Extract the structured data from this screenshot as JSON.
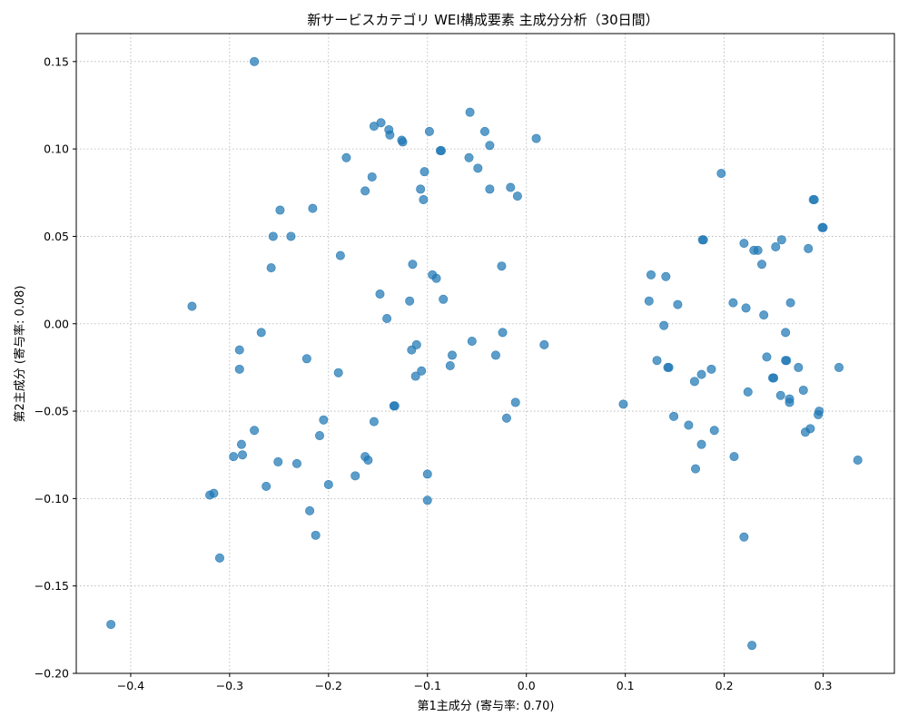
{
  "chart_data": {
    "type": "scatter",
    "title": "新サービスカテゴリ WEI構成要素 主成分分析（30日間）",
    "xlabel": "第1主成分 (寄与率: 0.70)",
    "ylabel": "第2主成分 (寄与率: 0.08)",
    "xlim": [
      -0.455,
      0.372
    ],
    "ylim": [
      -0.2,
      0.166
    ],
    "xticks": [
      -0.4,
      -0.3,
      -0.2,
      -0.1,
      0.0,
      0.1,
      0.2,
      0.3
    ],
    "xtick_labels": [
      "−0.4",
      "−0.3",
      "−0.2",
      "−0.1",
      "0.0",
      "0.1",
      "0.2",
      "0.3"
    ],
    "yticks": [
      -0.2,
      -0.15,
      -0.1,
      -0.05,
      0.0,
      0.05,
      0.1,
      0.15
    ],
    "ytick_labels": [
      "−0.20",
      "−0.15",
      "−0.10",
      "−0.05",
      "0.00",
      "0.05",
      "0.10",
      "0.15"
    ],
    "grid": true,
    "color": "#1f77b4",
    "points": [
      [
        -0.275,
        0.15
      ],
      [
        -0.42,
        -0.172
      ],
      [
        -0.338,
        0.01
      ],
      [
        -0.32,
        -0.098
      ],
      [
        -0.316,
        -0.097
      ],
      [
        -0.31,
        -0.134
      ],
      [
        -0.296,
        -0.076
      ],
      [
        -0.29,
        -0.015
      ],
      [
        -0.29,
        -0.026
      ],
      [
        -0.288,
        -0.069
      ],
      [
        -0.287,
        -0.075
      ],
      [
        -0.275,
        -0.061
      ],
      [
        -0.268,
        -0.005
      ],
      [
        -0.263,
        -0.093
      ],
      [
        -0.258,
        0.032
      ],
      [
        -0.256,
        0.05
      ],
      [
        -0.251,
        -0.079
      ],
      [
        -0.249,
        0.065
      ],
      [
        -0.238,
        0.05
      ],
      [
        -0.232,
        -0.08
      ],
      [
        -0.222,
        -0.02
      ],
      [
        -0.219,
        -0.107
      ],
      [
        -0.216,
        0.066
      ],
      [
        -0.213,
        -0.121
      ],
      [
        -0.209,
        -0.064
      ],
      [
        -0.205,
        -0.055
      ],
      [
        -0.2,
        -0.092
      ],
      [
        -0.19,
        -0.028
      ],
      [
        -0.188,
        0.039
      ],
      [
        -0.182,
        0.095
      ],
      [
        -0.173,
        -0.087
      ],
      [
        -0.163,
        0.076
      ],
      [
        -0.163,
        -0.076
      ],
      [
        -0.16,
        -0.078
      ],
      [
        -0.156,
        0.084
      ],
      [
        -0.154,
        0.113
      ],
      [
        -0.154,
        -0.056
      ],
      [
        -0.148,
        0.017
      ],
      [
        -0.147,
        0.115
      ],
      [
        -0.141,
        0.003
      ],
      [
        -0.139,
        0.111
      ],
      [
        -0.138,
        0.108
      ],
      [
        -0.134,
        -0.047
      ],
      [
        -0.133,
        -0.047
      ],
      [
        -0.126,
        0.105
      ],
      [
        -0.125,
        0.104
      ],
      [
        -0.118,
        0.013
      ],
      [
        -0.116,
        -0.015
      ],
      [
        -0.115,
        0.034
      ],
      [
        -0.112,
        -0.03
      ],
      [
        -0.111,
        -0.012
      ],
      [
        -0.107,
        0.077
      ],
      [
        -0.106,
        -0.027
      ],
      [
        -0.104,
        0.071
      ],
      [
        -0.103,
        0.087
      ],
      [
        -0.1,
        -0.101
      ],
      [
        -0.1,
        -0.086
      ],
      [
        -0.098,
        0.11
      ],
      [
        -0.095,
        0.028
      ],
      [
        -0.091,
        0.026
      ],
      [
        -0.087,
        0.099
      ],
      [
        -0.086,
        0.099
      ],
      [
        -0.084,
        0.014
      ],
      [
        -0.077,
        -0.024
      ],
      [
        -0.075,
        -0.018
      ],
      [
        -0.058,
        0.095
      ],
      [
        -0.057,
        0.121
      ],
      [
        -0.055,
        -0.01
      ],
      [
        -0.049,
        0.089
      ],
      [
        -0.042,
        0.11
      ],
      [
        -0.037,
        0.102
      ],
      [
        -0.037,
        0.077
      ],
      [
        -0.031,
        -0.018
      ],
      [
        -0.025,
        0.033
      ],
      [
        -0.024,
        -0.005
      ],
      [
        -0.02,
        -0.054
      ],
      [
        -0.016,
        0.078
      ],
      [
        -0.011,
        -0.045
      ],
      [
        -0.009,
        0.073
      ],
      [
        0.01,
        0.106
      ],
      [
        0.018,
        -0.012
      ],
      [
        0.098,
        -0.046
      ],
      [
        0.124,
        0.013
      ],
      [
        0.126,
        0.028
      ],
      [
        0.132,
        -0.021
      ],
      [
        0.139,
        -0.001
      ],
      [
        0.141,
        0.027
      ],
      [
        0.143,
        -0.025
      ],
      [
        0.144,
        -0.025
      ],
      [
        0.149,
        -0.053
      ],
      [
        0.153,
        0.011
      ],
      [
        0.164,
        -0.058
      ],
      [
        0.17,
        -0.033
      ],
      [
        0.171,
        -0.083
      ],
      [
        0.177,
        -0.069
      ],
      [
        0.177,
        -0.029
      ],
      [
        0.178,
        0.048
      ],
      [
        0.179,
        0.048
      ],
      [
        0.187,
        -0.026
      ],
      [
        0.19,
        -0.061
      ],
      [
        0.197,
        0.086
      ],
      [
        0.209,
        0.012
      ],
      [
        0.21,
        -0.076
      ],
      [
        0.22,
        0.046
      ],
      [
        0.22,
        -0.122
      ],
      [
        0.222,
        0.009
      ],
      [
        0.224,
        -0.039
      ],
      [
        0.228,
        -0.184
      ],
      [
        0.23,
        0.042
      ],
      [
        0.234,
        0.042
      ],
      [
        0.238,
        0.034
      ],
      [
        0.24,
        0.005
      ],
      [
        0.243,
        -0.019
      ],
      [
        0.249,
        -0.031
      ],
      [
        0.25,
        -0.031
      ],
      [
        0.252,
        0.044
      ],
      [
        0.257,
        -0.041
      ],
      [
        0.258,
        0.048
      ],
      [
        0.262,
        -0.021
      ],
      [
        0.262,
        -0.005
      ],
      [
        0.263,
        -0.021
      ],
      [
        0.266,
        -0.045
      ],
      [
        0.266,
        -0.043
      ],
      [
        0.267,
        0.012
      ],
      [
        0.275,
        -0.025
      ],
      [
        0.28,
        -0.038
      ],
      [
        0.282,
        -0.062
      ],
      [
        0.285,
        0.043
      ],
      [
        0.287,
        -0.06
      ],
      [
        0.29,
        0.071
      ],
      [
        0.291,
        0.071
      ],
      [
        0.295,
        -0.052
      ],
      [
        0.296,
        -0.05
      ],
      [
        0.299,
        0.055
      ],
      [
        0.3,
        0.055
      ],
      [
        0.316,
        -0.025
      ],
      [
        0.335,
        -0.078
      ]
    ]
  }
}
